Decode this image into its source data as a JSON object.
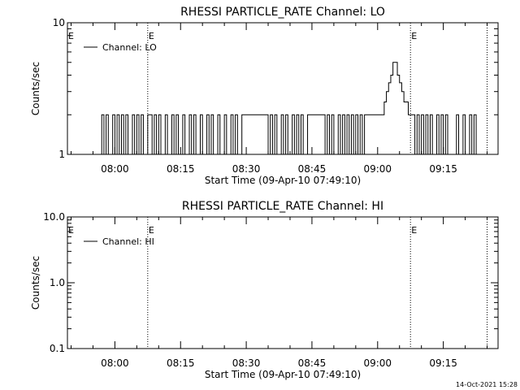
{
  "chart_data": [
    {
      "type": "line",
      "title": "RHESSI PARTICLE_RATE Channel: LO",
      "xlabel": "Start Time (09-Apr-10 07:49:10)",
      "ylabel": "Counts/sec",
      "yscale": "log",
      "ylim": [
        1,
        10
      ],
      "xlim": [
        "07:49:10",
        "09:27:30"
      ],
      "x_ticks": [
        "08:00",
        "08:15",
        "08:30",
        "08:45",
        "09:00",
        "09:15"
      ],
      "y_ticks": [
        "1",
        "10"
      ],
      "legend": {
        "position": "top-left",
        "entries": [
          "Channel: LO"
        ]
      },
      "eclipse_marker": "E",
      "markers": [
        {
          "time": "08:07:30",
          "style": "dotted",
          "label": "E"
        },
        {
          "time": "09:07:30",
          "style": "dotted",
          "label": "E"
        },
        {
          "time": "09:25:00",
          "style": "dotted",
          "label": ""
        }
      ],
      "series": [
        {
          "name": "Channel: LO",
          "x": [
            "07:56:30",
            "07:57:00",
            "07:57:30",
            "07:58:00",
            "07:58:30",
            "07:59:00",
            "07:59:30",
            "08:00:00",
            "08:00:30",
            "08:01:00",
            "08:01:30",
            "08:02:00",
            "08:02:30",
            "08:03:00",
            "08:03:30",
            "08:04:00",
            "08:04:30",
            "08:05:00",
            "08:05:30",
            "08:06:00",
            "08:06:30",
            "08:07:00",
            "08:07:30",
            "08:08:00",
            "08:08:30",
            "08:09:00",
            "08:09:30",
            "08:10:00",
            "08:10:30",
            "08:11:00",
            "08:11:30",
            "08:12:00",
            "08:12:30",
            "08:13:00",
            "08:13:30",
            "08:14:00",
            "08:14:30",
            "08:15:00",
            "08:15:30",
            "08:16:00",
            "08:16:30",
            "08:17:00",
            "08:17:30",
            "08:18:00",
            "08:18:30",
            "08:19:00",
            "08:19:30",
            "08:20:00",
            "08:20:30",
            "08:21:00",
            "08:21:30",
            "08:22:00",
            "08:22:30",
            "08:23:00",
            "08:23:30",
            "08:24:00",
            "08:24:30",
            "08:25:00",
            "08:25:30",
            "08:26:00",
            "08:26:30",
            "08:27:00",
            "08:27:30",
            "08:28:00",
            "08:28:30",
            "08:29:00",
            "08:35:00",
            "08:35:30",
            "08:36:00",
            "08:36:30",
            "08:37:00",
            "08:37:30",
            "08:38:00",
            "08:38:30",
            "08:39:00",
            "08:39:30",
            "08:40:00",
            "08:40:30",
            "08:41:00",
            "08:41:30",
            "08:42:00",
            "08:42:30",
            "08:43:00",
            "08:43:30",
            "08:44:00",
            "08:48:00",
            "08:48:30",
            "08:49:00",
            "08:49:30",
            "08:50:00",
            "08:50:30",
            "08:51:00",
            "08:51:30",
            "08:52:00",
            "08:52:30",
            "08:53:00",
            "08:53:30",
            "08:54:00",
            "08:54:30",
            "08:55:00",
            "08:55:30",
            "08:56:00",
            "08:56:30",
            "08:57:00",
            "09:00:00",
            "09:01:00",
            "09:01:30",
            "09:02:00",
            "09:02:30",
            "09:03:00",
            "09:03:30",
            "09:04:00",
            "09:04:30",
            "09:05:00",
            "09:05:30",
            "09:06:00",
            "09:07:00",
            "09:08:30",
            "09:09:00",
            "09:09:30",
            "09:10:00",
            "09:10:30",
            "09:11:00",
            "09:11:30",
            "09:12:00",
            "09:12:30",
            "09:13:00",
            "09:13:30",
            "09:14:00",
            "09:14:30",
            "09:15:00",
            "09:15:30",
            "09:16:00",
            "09:16:30",
            "09:17:00",
            "09:17:30",
            "09:18:00",
            "09:18:30",
            "09:19:00",
            "09:19:30",
            "09:20:00",
            "09:20:30",
            "09:21:00",
            "09:21:30",
            "09:22:00",
            "09:22:30",
            "09:23:00"
          ],
          "values": [
            1,
            2,
            1,
            2,
            1,
            1,
            2,
            1,
            2,
            1,
            2,
            1,
            2,
            1,
            1,
            2,
            1,
            2,
            1,
            2,
            1,
            1,
            2,
            2,
            1,
            2,
            1,
            2,
            1,
            1,
            2,
            1,
            1,
            2,
            1,
            2,
            1,
            1,
            2,
            1,
            1,
            2,
            1,
            2,
            1,
            1,
            2,
            1,
            1,
            2,
            1,
            2,
            1,
            1,
            2,
            1,
            1,
            2,
            1,
            1,
            2,
            1,
            2,
            1,
            1,
            2,
            1,
            2,
            1,
            2,
            1,
            1,
            2,
            1,
            2,
            1,
            1,
            2,
            1,
            2,
            1,
            2,
            1,
            1,
            2,
            1,
            2,
            1,
            2,
            1,
            1,
            2,
            1,
            2,
            1,
            2,
            1,
            2,
            1,
            2,
            1,
            2,
            1,
            2,
            2,
            2,
            2.5,
            3,
            3.5,
            4,
            5,
            5,
            4,
            3.5,
            3,
            2.5,
            2,
            1,
            2,
            1,
            2,
            1,
            2,
            1,
            2,
            1,
            1,
            2,
            1,
            2,
            1,
            2,
            1,
            1,
            1,
            1,
            2,
            1,
            1,
            2,
            1,
            1,
            2,
            1,
            2,
            1,
            1
          ]
        }
      ]
    },
    {
      "type": "line",
      "title": "RHESSI PARTICLE_RATE Channel: HI",
      "xlabel": "Start Time (09-Apr-10 07:49:10)",
      "ylabel": "Counts/sec",
      "yscale": "log",
      "ylim": [
        0.1,
        10
      ],
      "xlim": [
        "07:49:10",
        "09:27:30"
      ],
      "x_ticks": [
        "08:00",
        "08:15",
        "08:30",
        "08:45",
        "09:00",
        "09:15"
      ],
      "y_ticks": [
        "0.1",
        "1.0",
        "10.0"
      ],
      "legend": {
        "position": "top-left",
        "entries": [
          "Channel: HI"
        ]
      },
      "eclipse_marker": "E",
      "markers": [
        {
          "time": "08:07:30",
          "style": "dotted",
          "label": "E"
        },
        {
          "time": "09:07:30",
          "style": "dotted",
          "label": "E"
        },
        {
          "time": "09:25:00",
          "style": "dotted",
          "label": ""
        }
      ],
      "series": [
        {
          "name": "Channel: HI",
          "x": [],
          "values": []
        }
      ]
    }
  ],
  "footer": {
    "timestamp": "14-Oct-2021 15:28"
  }
}
